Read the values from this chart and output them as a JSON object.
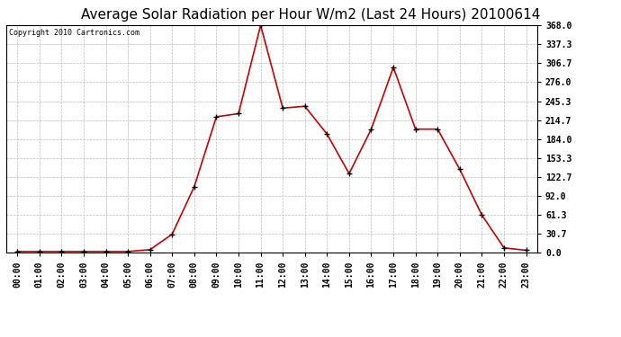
{
  "title": "Average Solar Radiation per Hour W/m2 (Last 24 Hours) 20100614",
  "copyright": "Copyright 2010 Cartronics.com",
  "hours": [
    "00:00",
    "01:00",
    "02:00",
    "03:00",
    "04:00",
    "05:00",
    "06:00",
    "07:00",
    "08:00",
    "09:00",
    "10:00",
    "11:00",
    "12:00",
    "13:00",
    "14:00",
    "15:00",
    "16:00",
    "17:00",
    "18:00",
    "19:00",
    "20:00",
    "21:00",
    "22:00",
    "23:00"
  ],
  "values": [
    2,
    2,
    2,
    2,
    2,
    2,
    5,
    30,
    107,
    220,
    225,
    368,
    234,
    237,
    192,
    128,
    200,
    300,
    200,
    200,
    135,
    61,
    8,
    4
  ],
  "line_color": "#cc0000",
  "marker_color": "#000000",
  "bg_color": "#ffffff",
  "grid_color": "#bbbbbb",
  "yticks": [
    0.0,
    30.7,
    61.3,
    92.0,
    122.7,
    153.3,
    184.0,
    214.7,
    245.3,
    276.0,
    306.7,
    337.3,
    368.0
  ],
  "ylim": [
    0,
    368
  ],
  "title_fontsize": 11,
  "copyright_fontsize": 6,
  "tick_fontsize": 7
}
